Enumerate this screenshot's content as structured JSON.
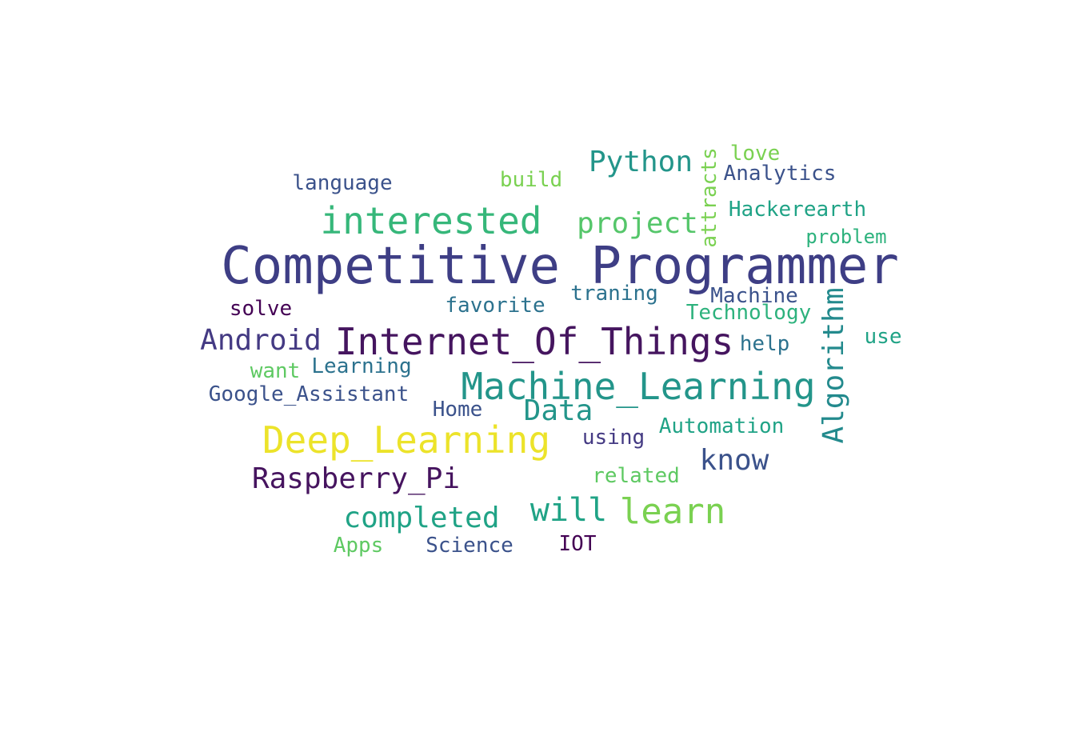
{
  "words": [
    {
      "id": "competitive-programmer",
      "text": "Competitive Programmer",
      "color": "#3e3e85"
    },
    {
      "id": "internet-of-things",
      "text": "Internet_Of_Things",
      "color": "#45155f"
    },
    {
      "id": "machine-learning-big",
      "text": "Machine_Learning",
      "color": "#23958a"
    },
    {
      "id": "deep-learning",
      "text": "Deep_Learning",
      "color": "#ece32a"
    },
    {
      "id": "interested",
      "text": "interested",
      "color": "#36b77a"
    },
    {
      "id": "project",
      "text": "project",
      "color": "#55c66a"
    },
    {
      "id": "python",
      "text": "Python",
      "color": "#23958a"
    },
    {
      "id": "algorithm",
      "text": "Algorithm",
      "color": "#238a8d"
    },
    {
      "id": "android",
      "text": "Android",
      "color": "#443a83"
    },
    {
      "id": "raspberry-pi",
      "text": "Raspberry_Pi",
      "color": "#46145f"
    },
    {
      "id": "will",
      "text": "will",
      "color": "#20a386"
    },
    {
      "id": "learn",
      "text": "learn",
      "color": "#7ad151"
    },
    {
      "id": "completed",
      "text": "completed",
      "color": "#20a386"
    },
    {
      "id": "data",
      "text": "Data",
      "color": "#23958a"
    },
    {
      "id": "know",
      "text": "know",
      "color": "#3b528b"
    },
    {
      "id": "attracts",
      "text": "attracts",
      "color": "#7ad151"
    },
    {
      "id": "language",
      "text": "language",
      "color": "#3b528b"
    },
    {
      "id": "build",
      "text": "build",
      "color": "#7ad151"
    },
    {
      "id": "love",
      "text": "love",
      "color": "#7ad151"
    },
    {
      "id": "analytics",
      "text": "Analytics",
      "color": "#3b528b"
    },
    {
      "id": "hackerearth",
      "text": "Hackerearth",
      "color": "#20a386"
    },
    {
      "id": "problem",
      "text": "problem",
      "color": "#2db27d"
    },
    {
      "id": "traning",
      "text": "traning",
      "color": "#2c728e"
    },
    {
      "id": "machine",
      "text": "Machine",
      "color": "#3b528b"
    },
    {
      "id": "solve",
      "text": "solve",
      "color": "#440154"
    },
    {
      "id": "favorite",
      "text": "favorite",
      "color": "#2c728e"
    },
    {
      "id": "technology",
      "text": "Technology",
      "color": "#2db27d"
    },
    {
      "id": "help",
      "text": "help",
      "color": "#2c728e"
    },
    {
      "id": "use",
      "text": "use",
      "color": "#20a386"
    },
    {
      "id": "want",
      "text": "want",
      "color": "#5ec962"
    },
    {
      "id": "learning",
      "text": "Learning",
      "color": "#2c728e"
    },
    {
      "id": "google-assistant",
      "text": "Google_Assistant",
      "color": "#3b528b"
    },
    {
      "id": "home",
      "text": "Home",
      "color": "#3b528b"
    },
    {
      "id": "automation",
      "text": "Automation",
      "color": "#20a386"
    },
    {
      "id": "using",
      "text": "using",
      "color": "#443a83"
    },
    {
      "id": "related",
      "text": "related",
      "color": "#5ec962"
    },
    {
      "id": "apps",
      "text": "Apps",
      "color": "#5ec962"
    },
    {
      "id": "science",
      "text": "Science",
      "color": "#3b528b"
    },
    {
      "id": "iot",
      "text": "IOT",
      "color": "#440154"
    }
  ]
}
